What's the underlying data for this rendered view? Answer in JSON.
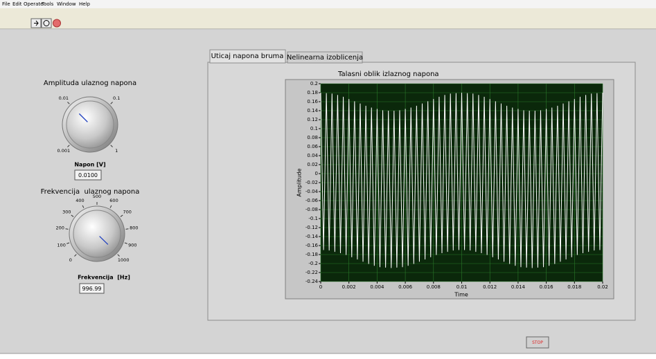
{
  "menu": [
    "File",
    "Edit",
    "Operate",
    "Tools",
    "Window",
    "Help"
  ],
  "controls": {
    "amplitude": {
      "title": "Amplituda ulaznog napona",
      "label": "Napon [V]",
      "scale": "log",
      "range": [
        0.001,
        1
      ],
      "ticks": [
        0.001,
        0.01,
        0.1,
        1
      ],
      "value": 0.01,
      "value_label": "0.0100"
    },
    "frequency": {
      "title": "Frekvencija  ulaznog napona",
      "label": "Frekvencija  [Hz]",
      "scale": "linear",
      "range": [
        0,
        1000
      ],
      "ticks": [
        0,
        100,
        200,
        300,
        400,
        500,
        600,
        700,
        800,
        900,
        1000
      ],
      "value": 996.99
    }
  },
  "tabs": [
    "Uticaj napona bruma",
    "Nelinearna izoblicenja"
  ],
  "chart_data": {
    "type": "line",
    "title": "Talasni oblik izlaznog napona",
    "x_label": "Time",
    "y_label": "Amplitude",
    "color": "#ffffff",
    "x": [
      0,
      0.0002,
      0.0004,
      0.0006,
      0.0008,
      0.001,
      0.0012,
      0.0014,
      0.0016,
      0.0018,
      0.002,
      0.0022,
      0.0024,
      0.0026,
      0.0028,
      0.003,
      0.0032,
      0.0034,
      0.0036,
      0.0038,
      0.004,
      0.0042,
      0.0044,
      0.0046,
      0.0048,
      0.005,
      0.0052,
      0.0054,
      0.0056,
      0.0058,
      0.006,
      0.0062,
      0.0064,
      0.0066,
      0.0068,
      0.007,
      0.0072,
      0.0074,
      0.0076,
      0.0078,
      0.008,
      0.0082,
      0.0084,
      0.0086,
      0.0088,
      0.009,
      0.0092,
      0.0094,
      0.0096,
      0.0098,
      0.01,
      0.0102,
      0.0104,
      0.0106,
      0.0108,
      0.011,
      0.0112,
      0.0114,
      0.0116,
      0.0118,
      0.012,
      0.0122,
      0.0124,
      0.0126,
      0.0128,
      0.013,
      0.0132,
      0.0134,
      0.0136,
      0.0138,
      0.014,
      0.0142,
      0.0144,
      0.0146,
      0.0148,
      0.015,
      0.0152,
      0.0154,
      0.0156,
      0.0158,
      0.016,
      0.0162,
      0.0164,
      0.0166,
      0.0168,
      0.017,
      0.0172,
      0.0174,
      0.0176,
      0.0178,
      0.018,
      0.0182,
      0.0184,
      0.0186,
      0.0188,
      0.019,
      0.0192,
      0.0194,
      0.0196,
      0.0198,
      0.02
    ],
    "values": [
      0.18,
      -0.17,
      0.179,
      -0.171,
      0.178,
      -0.174,
      0.175,
      -0.177,
      0.171,
      -0.181,
      0.166,
      -0.186,
      0.161,
      -0.191,
      0.156,
      -0.196,
      0.151,
      -0.201,
      0.147,
      -0.205,
      0.144,
      -0.208,
      0.141,
      -0.209,
      0.14,
      -0.21,
      0.14,
      -0.209,
      0.141,
      -0.208,
      0.144,
      -0.205,
      0.147,
      -0.201,
      0.151,
      -0.196,
      0.156,
      -0.191,
      0.161,
      -0.186,
      0.166,
      -0.181,
      0.171,
      -0.177,
      0.175,
      -0.174,
      0.178,
      -0.171,
      0.179,
      -0.17,
      0.18,
      -0.17,
      0.179,
      -0.171,
      0.178,
      -0.174,
      0.175,
      -0.177,
      0.171,
      -0.181,
      0.166,
      -0.186,
      0.161,
      -0.191,
      0.156,
      -0.196,
      0.151,
      -0.201,
      0.147,
      -0.205,
      0.144,
      -0.208,
      0.141,
      -0.209,
      0.14,
      -0.21,
      0.14,
      -0.209,
      0.141,
      -0.208,
      0.144,
      -0.205,
      0.147,
      -0.201,
      0.151,
      -0.196,
      0.156,
      -0.191,
      0.161,
      -0.186,
      0.166,
      -0.181,
      0.171,
      -0.177,
      0.175,
      -0.174,
      0.178,
      -0.171,
      0.179,
      -0.17,
      0.18
    ],
    "xlim": [
      0,
      0.02
    ],
    "ylim": [
      -0.24,
      0.2
    ],
    "xticks": [
      0,
      0.002,
      0.004,
      0.006,
      0.008,
      0.01,
      0.012,
      0.014,
      0.016,
      0.018,
      0.02
    ],
    "yticks": [
      0.2,
      0.18,
      0.16,
      0.14,
      0.12,
      0.1,
      0.08,
      0.06,
      0.04,
      0.02,
      0,
      -0.02,
      -0.04,
      -0.06,
      -0.08,
      -0.1,
      -0.12,
      -0.14,
      -0.16,
      -0.18,
      -0.2,
      -0.22,
      -0.24
    ],
    "grid": true
  },
  "stop_button": "STOP"
}
